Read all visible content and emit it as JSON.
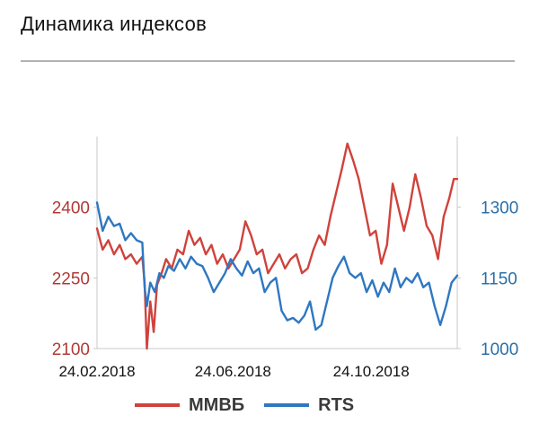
{
  "header": {
    "title": "Динамика индексов"
  },
  "chart_data": {
    "type": "line",
    "title": "Динамика индексов",
    "x_ticks": [
      "24.02.2018",
      "24.06.2018",
      "24.10.2018"
    ],
    "x_range": [
      "2018-02-24",
      "2019-01-08"
    ],
    "y_left": {
      "ticks": [
        "2100",
        "2250",
        "2400"
      ],
      "range": [
        2100,
        2550
      ]
    },
    "y_right": {
      "ticks": [
        "1000",
        "1150",
        "1300"
      ],
      "range": [
        1000,
        1450
      ]
    },
    "grid": false,
    "legend_position": "bottom",
    "colors": {
      "mmvb": "#d0423c",
      "rts": "#2f77c1",
      "left_axis": "#b03a35",
      "right_axis": "#2a6fa8"
    },
    "series": [
      {
        "name": "ММВБ",
        "axis": "left",
        "color": "#d0423c",
        "points": [
          [
            "2018-02-24",
            2355
          ],
          [
            "2018-03-01",
            2310
          ],
          [
            "2018-03-06",
            2330
          ],
          [
            "2018-03-11",
            2300
          ],
          [
            "2018-03-16",
            2320
          ],
          [
            "2018-03-21",
            2290
          ],
          [
            "2018-03-26",
            2300
          ],
          [
            "2018-03-31",
            2280
          ],
          [
            "2018-04-05",
            2295
          ],
          [
            "2018-04-07",
            2240
          ],
          [
            "2018-04-09",
            2100
          ],
          [
            "2018-04-12",
            2200
          ],
          [
            "2018-04-15",
            2135
          ],
          [
            "2018-04-18",
            2235
          ],
          [
            "2018-04-22",
            2260
          ],
          [
            "2018-04-26",
            2290
          ],
          [
            "2018-05-01",
            2270
          ],
          [
            "2018-05-06",
            2310
          ],
          [
            "2018-05-11",
            2300
          ],
          [
            "2018-05-16",
            2350
          ],
          [
            "2018-05-21",
            2320
          ],
          [
            "2018-05-26",
            2335
          ],
          [
            "2018-05-31",
            2300
          ],
          [
            "2018-06-05",
            2320
          ],
          [
            "2018-06-10",
            2280
          ],
          [
            "2018-06-15",
            2300
          ],
          [
            "2018-06-20",
            2270
          ],
          [
            "2018-06-25",
            2290
          ],
          [
            "2018-06-30",
            2310
          ],
          [
            "2018-07-05",
            2370
          ],
          [
            "2018-07-10",
            2340
          ],
          [
            "2018-07-15",
            2300
          ],
          [
            "2018-07-20",
            2310
          ],
          [
            "2018-07-25",
            2260
          ],
          [
            "2018-07-30",
            2280
          ],
          [
            "2018-08-04",
            2300
          ],
          [
            "2018-08-09",
            2270
          ],
          [
            "2018-08-14",
            2290
          ],
          [
            "2018-08-19",
            2300
          ],
          [
            "2018-08-24",
            2260
          ],
          [
            "2018-08-29",
            2270
          ],
          [
            "2018-09-03",
            2310
          ],
          [
            "2018-09-08",
            2340
          ],
          [
            "2018-09-13",
            2320
          ],
          [
            "2018-09-18",
            2380
          ],
          [
            "2018-09-23",
            2430
          ],
          [
            "2018-09-28",
            2480
          ],
          [
            "2018-10-03",
            2535
          ],
          [
            "2018-10-08",
            2500
          ],
          [
            "2018-10-13",
            2460
          ],
          [
            "2018-10-18",
            2400
          ],
          [
            "2018-10-23",
            2340
          ],
          [
            "2018-10-28",
            2350
          ],
          [
            "2018-11-02",
            2280
          ],
          [
            "2018-11-07",
            2320
          ],
          [
            "2018-11-12",
            2450
          ],
          [
            "2018-11-17",
            2400
          ],
          [
            "2018-11-22",
            2350
          ],
          [
            "2018-11-27",
            2400
          ],
          [
            "2018-12-02",
            2470
          ],
          [
            "2018-12-07",
            2420
          ],
          [
            "2018-12-12",
            2360
          ],
          [
            "2018-12-17",
            2340
          ],
          [
            "2018-12-22",
            2290
          ],
          [
            "2018-12-27",
            2380
          ],
          [
            "2019-01-01",
            2420
          ],
          [
            "2019-01-05",
            2460
          ],
          [
            "2019-01-08",
            2460
          ]
        ]
      },
      {
        "name": "RTS",
        "axis": "right",
        "color": "#2f77c1",
        "points": [
          [
            "2018-02-24",
            1310
          ],
          [
            "2018-03-01",
            1250
          ],
          [
            "2018-03-06",
            1280
          ],
          [
            "2018-03-11",
            1260
          ],
          [
            "2018-03-16",
            1265
          ],
          [
            "2018-03-21",
            1230
          ],
          [
            "2018-03-26",
            1245
          ],
          [
            "2018-03-31",
            1230
          ],
          [
            "2018-04-05",
            1225
          ],
          [
            "2018-04-07",
            1130
          ],
          [
            "2018-04-09",
            1090
          ],
          [
            "2018-04-12",
            1140
          ],
          [
            "2018-04-16",
            1120
          ],
          [
            "2018-04-20",
            1160
          ],
          [
            "2018-04-24",
            1150
          ],
          [
            "2018-04-28",
            1175
          ],
          [
            "2018-05-03",
            1165
          ],
          [
            "2018-05-08",
            1190
          ],
          [
            "2018-05-13",
            1170
          ],
          [
            "2018-05-18",
            1195
          ],
          [
            "2018-05-23",
            1180
          ],
          [
            "2018-05-28",
            1175
          ],
          [
            "2018-06-02",
            1150
          ],
          [
            "2018-06-07",
            1120
          ],
          [
            "2018-06-12",
            1140
          ],
          [
            "2018-06-17",
            1160
          ],
          [
            "2018-06-22",
            1190
          ],
          [
            "2018-06-27",
            1170
          ],
          [
            "2018-07-02",
            1155
          ],
          [
            "2018-07-07",
            1185
          ],
          [
            "2018-07-12",
            1160
          ],
          [
            "2018-07-17",
            1170
          ],
          [
            "2018-07-22",
            1120
          ],
          [
            "2018-07-27",
            1140
          ],
          [
            "2018-08-01",
            1150
          ],
          [
            "2018-08-06",
            1080
          ],
          [
            "2018-08-11",
            1060
          ],
          [
            "2018-08-16",
            1065
          ],
          [
            "2018-08-21",
            1055
          ],
          [
            "2018-08-26",
            1070
          ],
          [
            "2018-08-31",
            1100
          ],
          [
            "2018-09-05",
            1040
          ],
          [
            "2018-09-10",
            1050
          ],
          [
            "2018-09-15",
            1100
          ],
          [
            "2018-09-20",
            1150
          ],
          [
            "2018-09-25",
            1175
          ],
          [
            "2018-09-30",
            1195
          ],
          [
            "2018-10-05",
            1160
          ],
          [
            "2018-10-10",
            1150
          ],
          [
            "2018-10-15",
            1160
          ],
          [
            "2018-10-20",
            1120
          ],
          [
            "2018-10-25",
            1145
          ],
          [
            "2018-10-30",
            1110
          ],
          [
            "2018-11-04",
            1140
          ],
          [
            "2018-11-09",
            1120
          ],
          [
            "2018-11-14",
            1170
          ],
          [
            "2018-11-19",
            1130
          ],
          [
            "2018-11-24",
            1150
          ],
          [
            "2018-11-29",
            1140
          ],
          [
            "2018-12-04",
            1160
          ],
          [
            "2018-12-09",
            1130
          ],
          [
            "2018-12-14",
            1140
          ],
          [
            "2018-12-19",
            1090
          ],
          [
            "2018-12-24",
            1050
          ],
          [
            "2018-12-29",
            1090
          ],
          [
            "2019-01-03",
            1140
          ],
          [
            "2019-01-08",
            1155
          ]
        ]
      }
    ]
  }
}
